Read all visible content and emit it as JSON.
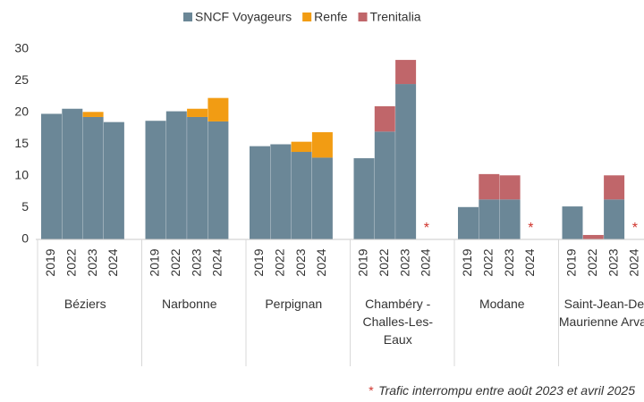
{
  "chart_data": {
    "type": "stacked_bar",
    "groups": [
      "Béziers",
      "Narbonne",
      "Perpignan",
      "Chambéry - Challes-Les-Eaux",
      "Modane",
      "Saint-Jean-De-Maurienne Arvan"
    ],
    "categories": [
      "2019",
      "2022",
      "2023",
      "2024",
      "2019",
      "2022",
      "2023",
      "2024",
      "2019",
      "2022",
      "2023",
      "2024",
      "2019",
      "2022",
      "2023",
      "2024",
      "2019",
      "2022",
      "2023",
      "2024",
      "2019",
      "2022",
      "2023",
      "2024"
    ],
    "series": [
      {
        "name": "SNCF Voyageurs",
        "color": "#6b8797",
        "values": [
          19.8,
          20.6,
          19.3,
          18.5,
          18.7,
          20.2,
          19.3,
          18.6,
          14.7,
          15.0,
          13.8,
          12.9,
          12.8,
          17.0,
          24.5,
          null,
          5.1,
          6.3,
          6.3,
          null,
          5.2,
          0,
          6.3,
          null
        ]
      },
      {
        "name": "Renfe",
        "color": "#f29c13",
        "values": [
          0,
          0,
          0.8,
          0,
          0,
          0,
          1.3,
          3.7,
          0,
          0,
          1.6,
          4.0,
          0,
          0,
          0,
          null,
          0,
          0,
          0,
          null,
          0,
          0,
          0,
          null
        ]
      },
      {
        "name": "Trenitalia",
        "color": "#c0666a",
        "values": [
          0,
          0,
          0,
          0,
          0,
          0,
          0,
          0,
          0,
          0,
          0,
          0,
          0,
          4.0,
          3.8,
          null,
          0,
          4.0,
          3.8,
          null,
          0,
          0.7,
          3.8,
          null
        ]
      }
    ],
    "annotations": [
      {
        "category": 15,
        "text": "*"
      },
      {
        "category": 19,
        "text": "*"
      },
      {
        "category": 23,
        "text": "*"
      }
    ],
    "footnote_symbol": "*",
    "footnote": "Trafic interrompu entre août 2023 et avril 2025",
    "ylim": [
      0,
      30
    ],
    "yticks": [
      0,
      5,
      10,
      15,
      20,
      25,
      30
    ],
    "legend": "top"
  }
}
